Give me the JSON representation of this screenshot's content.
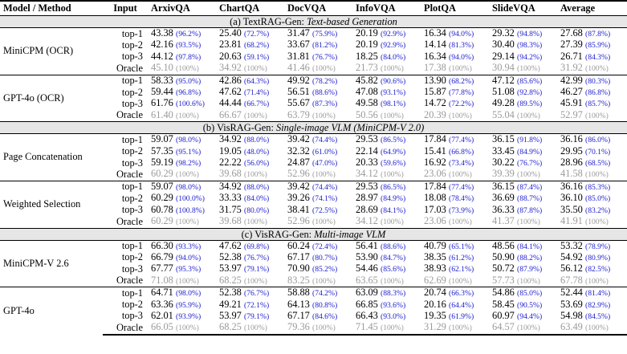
{
  "headers": [
    "Model / Method",
    "Input",
    "ArxivQA",
    "ChartQA",
    "DocVQA",
    "InfoVQA",
    "PlotQA",
    "SlideVQA",
    "Average"
  ],
  "sections": [
    {
      "prefix": "(a) TextRAG-Gen: ",
      "title": "Text-based Generation",
      "groups": [
        {
          "model": "MiniCPM (OCR)",
          "rows": [
            {
              "input": "top-1",
              "cells": [
                [
                  "43.38",
                  "(96.2%)"
                ],
                [
                  "25.40",
                  "(72.7%)"
                ],
                [
                  "31.47",
                  "(75.9%)"
                ],
                [
                  "20.19",
                  "(92.9%)"
                ],
                [
                  "16.34",
                  "(94.0%)"
                ],
                [
                  "29.32",
                  "(94.8%)"
                ],
                [
                  "27.68",
                  "(87.8%)"
                ]
              ]
            },
            {
              "input": "top-2",
              "cells": [
                [
                  "42.16",
                  "(93.5%)"
                ],
                [
                  "23.81",
                  "(68.2%)"
                ],
                [
                  "33.67",
                  "(81.2%)"
                ],
                [
                  "20.19",
                  "(92.9%)"
                ],
                [
                  "14.14",
                  "(81.3%)"
                ],
                [
                  "30.40",
                  "(98.3%)"
                ],
                [
                  "27.39",
                  "(85.9%)"
                ]
              ]
            },
            {
              "input": "top-3",
              "cells": [
                [
                  "44.12",
                  "(97.8%)"
                ],
                [
                  "20.63",
                  "(59.1%)"
                ],
                [
                  "31.81",
                  "(76.7%)"
                ],
                [
                  "18.25",
                  "(84.0%)"
                ],
                [
                  "16.34",
                  "(94.0%)"
                ],
                [
                  "29.14",
                  "(94.2%)"
                ],
                [
                  "26.71",
                  "(84.3%)"
                ]
              ]
            },
            {
              "input": "Oracle",
              "oracle": true,
              "cells": [
                [
                  "45.10",
                  "(100%)"
                ],
                [
                  "34.92",
                  "(100%)"
                ],
                [
                  "41.46",
                  "(100%)"
                ],
                [
                  "21.73",
                  "(100%)"
                ],
                [
                  "17.38",
                  "(100%)"
                ],
                [
                  "30.94",
                  "(100%)"
                ],
                [
                  "31.92",
                  "(100%)"
                ]
              ]
            }
          ]
        },
        {
          "model": "GPT-4o (OCR)",
          "rows": [
            {
              "input": "top-1",
              "cells": [
                [
                  "58.33",
                  "(95.0%)"
                ],
                [
                  "42.86",
                  "(64.3%)"
                ],
                [
                  "49.92",
                  "(78.2%)"
                ],
                [
                  "45.82",
                  "(90.6%)"
                ],
                [
                  "13.90",
                  "(68.2%)"
                ],
                [
                  "47.12",
                  "(85.6%)"
                ],
                [
                  "42.99",
                  "(80.3%)"
                ]
              ]
            },
            {
              "input": "top-2",
              "cells": [
                [
                  "59.44",
                  "(96.8%)"
                ],
                [
                  "47.62",
                  "(71.4%)"
                ],
                [
                  "56.51",
                  "(88.6%)"
                ],
                [
                  "47.08",
                  "(93.1%)"
                ],
                [
                  "15.87",
                  "(77.8%)"
                ],
                [
                  "51.08",
                  "(92.8%)"
                ],
                [
                  "46.27",
                  "(86.8%)"
                ]
              ]
            },
            {
              "input": "top-3",
              "cells": [
                [
                  "61.76",
                  "(100.6%)"
                ],
                [
                  "44.44",
                  "(66.7%)"
                ],
                [
                  "55.67",
                  "(87.3%)"
                ],
                [
                  "49.58",
                  "(98.1%)"
                ],
                [
                  "14.72",
                  "(72.2%)"
                ],
                [
                  "49.28",
                  "(89.5%)"
                ],
                [
                  "45.91",
                  "(85.7%)"
                ]
              ]
            },
            {
              "input": "Oracle",
              "oracle": true,
              "cells": [
                [
                  "61.40",
                  "(100%)"
                ],
                [
                  "66.67",
                  "(100%)"
                ],
                [
                  "63.79",
                  "(100%)"
                ],
                [
                  "50.56",
                  "(100%)"
                ],
                [
                  "20.39",
                  "(100%)"
                ],
                [
                  "55.04",
                  "(100%)"
                ],
                [
                  "52.97",
                  "(100%)"
                ]
              ]
            }
          ]
        }
      ]
    },
    {
      "prefix": "(b) VisRAG-Gen: ",
      "title": "Single-image VLM (MiniCPM-V 2.0)",
      "groups": [
        {
          "model": "Page Concatenation",
          "rows": [
            {
              "input": "top-1",
              "cells": [
                [
                  "59.07",
                  "(98.0%)"
                ],
                [
                  "34.92",
                  "(88.0%)"
                ],
                [
                  "39.42",
                  "(74.4%)"
                ],
                [
                  "29.53",
                  "(86.5%)"
                ],
                [
                  "17.84",
                  "(77.4%)"
                ],
                [
                  "36.15",
                  "(91.8%)"
                ],
                [
                  "36.16",
                  "(86.0%)"
                ]
              ]
            },
            {
              "input": "top-2",
              "cells": [
                [
                  "57.35",
                  "(95.1%)"
                ],
                [
                  "19.05",
                  "(48.0%)"
                ],
                [
                  "32.32",
                  "(61.0%)"
                ],
                [
                  "22.14",
                  "(64.9%)"
                ],
                [
                  "15.41",
                  "(66.8%)"
                ],
                [
                  "33.45",
                  "(84.9%)"
                ],
                [
                  "29.95",
                  "(70.1%)"
                ]
              ]
            },
            {
              "input": "top-3",
              "cells": [
                [
                  "59.19",
                  "(98.2%)"
                ],
                [
                  "22.22",
                  "(56.0%)"
                ],
                [
                  "24.87",
                  "(47.0%)"
                ],
                [
                  "20.33",
                  "(59.6%)"
                ],
                [
                  "16.92",
                  "(73.4%)"
                ],
                [
                  "30.22",
                  "(76.7%)"
                ],
                [
                  "28.96",
                  "(68.5%)"
                ]
              ]
            },
            {
              "input": "Oracle",
              "oracle": true,
              "cells": [
                [
                  "60.29",
                  "(100%)"
                ],
                [
                  "39.68",
                  "(100%)"
                ],
                [
                  "52.96",
                  "(100%)"
                ],
                [
                  "34.12",
                  "(100%)"
                ],
                [
                  "23.06",
                  "(100%)"
                ],
                [
                  "39.39",
                  "(100%)"
                ],
                [
                  "41.58",
                  "(100%)"
                ]
              ]
            }
          ]
        },
        {
          "model": "Weighted Selection",
          "rows": [
            {
              "input": "top-1",
              "cells": [
                [
                  "59.07",
                  "(98.0%)"
                ],
                [
                  "34.92",
                  "(88.0%)"
                ],
                [
                  "39.42",
                  "(74.4%)"
                ],
                [
                  "29.53",
                  "(86.5%)"
                ],
                [
                  "17.84",
                  "(77.4%)"
                ],
                [
                  "36.15",
                  "(87.4%)"
                ],
                [
                  "36.16",
                  "(85.3%)"
                ]
              ]
            },
            {
              "input": "top-2",
              "cells": [
                [
                  "60.29",
                  "(100.0%)"
                ],
                [
                  "33.33",
                  "(84.0%)"
                ],
                [
                  "39.26",
                  "(74.1%)"
                ],
                [
                  "28.97",
                  "(84.9%)"
                ],
                [
                  "18.08",
                  "(78.4%)"
                ],
                [
                  "36.69",
                  "(88.7%)"
                ],
                [
                  "36.10",
                  "(85.0%)"
                ]
              ]
            },
            {
              "input": "top-3",
              "cells": [
                [
                  "60.78",
                  "(100.8%)"
                ],
                [
                  "31.75",
                  "(80.0%)"
                ],
                [
                  "38.41",
                  "(72.5%)"
                ],
                [
                  "28.69",
                  "(84.1%)"
                ],
                [
                  "17.03",
                  "(73.9%)"
                ],
                [
                  "36.33",
                  "(87.8%)"
                ],
                [
                  "35.50",
                  "(83.2%)"
                ]
              ]
            },
            {
              "input": "Oracle",
              "oracle": true,
              "cells": [
                [
                  "60.29",
                  "(100%)"
                ],
                [
                  "39.68",
                  "(100%)"
                ],
                [
                  "52.96",
                  "(100%)"
                ],
                [
                  "34.12",
                  "(100%)"
                ],
                [
                  "23.06",
                  "(100%)"
                ],
                [
                  "41.37",
                  "(100%)"
                ],
                [
                  "41.91",
                  "(100%)"
                ]
              ]
            }
          ]
        }
      ]
    },
    {
      "prefix": "(c) VisRAG-Gen: ",
      "title": "Multi-image VLM",
      "groups": [
        {
          "model": "MiniCPM-V 2.6",
          "rows": [
            {
              "input": "top-1",
              "cells": [
                [
                  "66.30",
                  "(93.3%)"
                ],
                [
                  "47.62",
                  "(69.8%)"
                ],
                [
                  "60.24",
                  "(72.4%)"
                ],
                [
                  "56.41",
                  "(88.6%)"
                ],
                [
                  "40.79",
                  "(65.1%)"
                ],
                [
                  "48.56",
                  "(84.1%)"
                ],
                [
                  "53.32",
                  "(78.9%)"
                ]
              ]
            },
            {
              "input": "top-2",
              "cells": [
                [
                  "66.79",
                  "(94.0%)"
                ],
                [
                  "52.38",
                  "(76.7%)"
                ],
                [
                  "67.17",
                  "(80.7%)"
                ],
                [
                  "53.90",
                  "(84.7%)"
                ],
                [
                  "38.35",
                  "(61.2%)"
                ],
                [
                  "50.90",
                  "(88.2%)"
                ],
                [
                  "54.92",
                  "(80.9%)"
                ]
              ]
            },
            {
              "input": "top-3",
              "cells": [
                [
                  "67.77",
                  "(95.3%)"
                ],
                [
                  "53.97",
                  "(79.1%)"
                ],
                [
                  "70.90",
                  "(85.2%)"
                ],
                [
                  "54.46",
                  "(85.6%)"
                ],
                [
                  "38.93",
                  "(62.1%)"
                ],
                [
                  "50.72",
                  "(87.9%)"
                ],
                [
                  "56.12",
                  "(82.5%)"
                ]
              ]
            },
            {
              "input": "Oracle",
              "oracle": true,
              "cells": [
                [
                  "71.08",
                  "(100%)"
                ],
                [
                  "68.25",
                  "(100%)"
                ],
                [
                  "83.25",
                  "(100%)"
                ],
                [
                  "63.65",
                  "(100%)"
                ],
                [
                  "62.69",
                  "(100%)"
                ],
                [
                  "57.73",
                  "(100%)"
                ],
                [
                  "67.78",
                  "(100%)"
                ]
              ]
            }
          ]
        },
        {
          "model": "GPT-4o",
          "rows": [
            {
              "input": "top-1",
              "cells": [
                [
                  "64.71",
                  "(98.0%)"
                ],
                [
                  "52.38",
                  "(76.7%)"
                ],
                [
                  "58.88",
                  "(74.2%)"
                ],
                [
                  "63.09",
                  "(88.3%)"
                ],
                [
                  "20.74",
                  "(66.3%)"
                ],
                [
                  "54.86",
                  "(85.0%)"
                ],
                [
                  "52.44",
                  "(81.4%)"
                ]
              ]
            },
            {
              "input": "top-2",
              "cells": [
                [
                  "63.36",
                  "(95.9%)"
                ],
                [
                  "49.21",
                  "(72.1%)"
                ],
                [
                  "64.13",
                  "(80.8%)"
                ],
                [
                  "66.85",
                  "(93.6%)"
                ],
                [
                  "20.16",
                  "(64.4%)"
                ],
                [
                  "58.45",
                  "(90.5%)"
                ],
                [
                  "53.69",
                  "(82.9%)"
                ]
              ]
            },
            {
              "input": "top-3",
              "cells": [
                [
                  "62.01",
                  "(93.9%)"
                ],
                [
                  "53.97",
                  "(79.1%)"
                ],
                [
                  "67.17",
                  "(84.6%)"
                ],
                [
                  "66.43",
                  "(93.0%)"
                ],
                [
                  "19.35",
                  "(61.9%)"
                ],
                [
                  "60.97",
                  "(94.4%)"
                ],
                [
                  "54.98",
                  "(84.5%)"
                ]
              ]
            },
            {
              "input": "Oracle",
              "oracle": true,
              "cells": [
                [
                  "66.05",
                  "(100%)"
                ],
                [
                  "68.25",
                  "(100%)"
                ],
                [
                  "79.36",
                  "(100%)"
                ],
                [
                  "71.45",
                  "(100%)"
                ],
                [
                  "31.29",
                  "(100%)"
                ],
                [
                  "64.57",
                  "(100%)"
                ],
                [
                  "63.49",
                  "(100%)"
                ]
              ]
            }
          ]
        }
      ]
    }
  ]
}
